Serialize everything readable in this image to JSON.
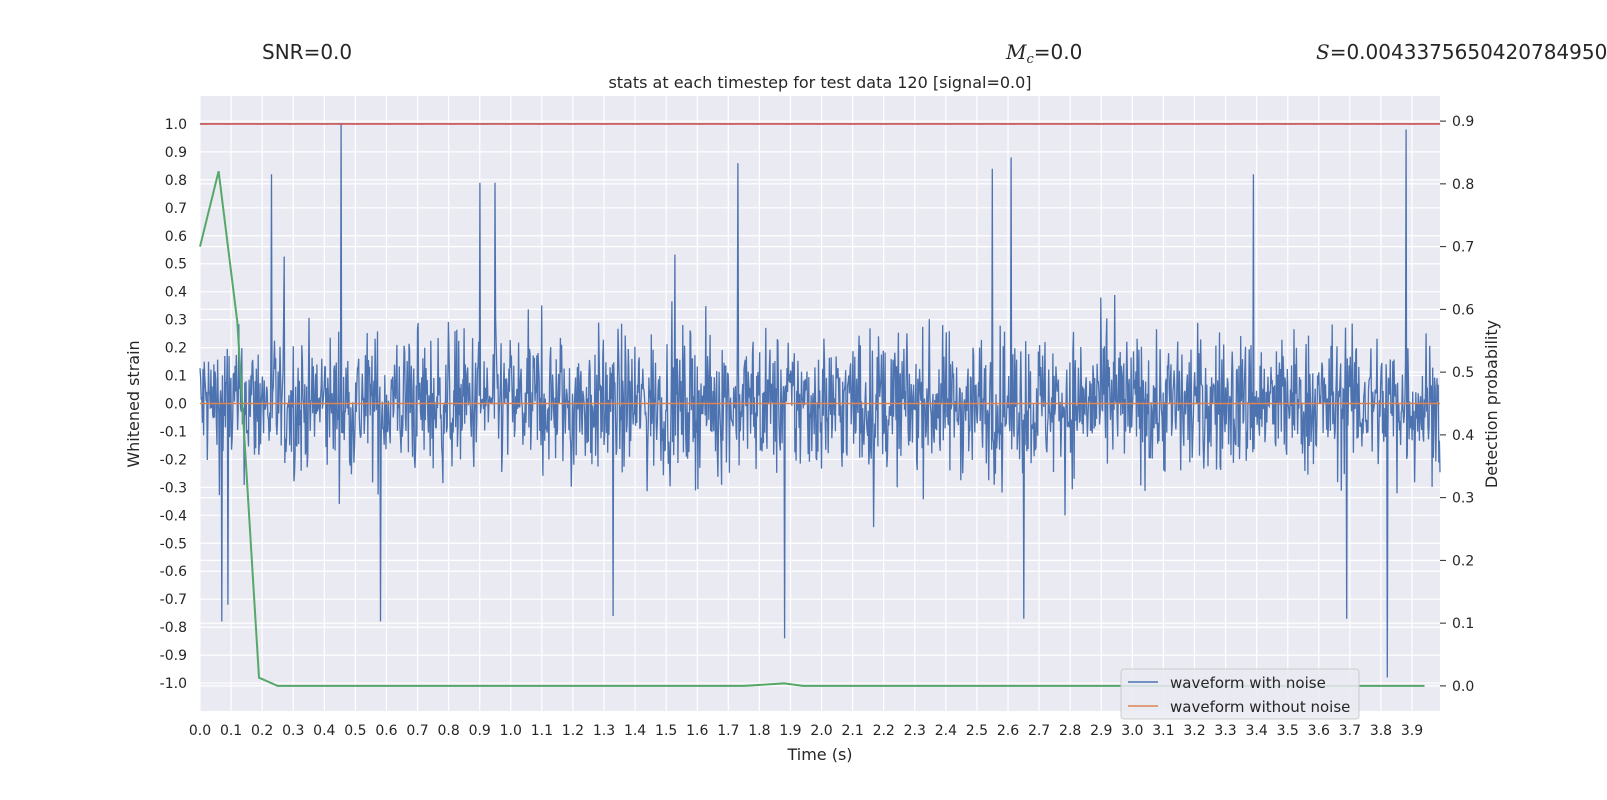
{
  "header": {
    "snr_label": "SNR",
    "snr_value": "=0.0",
    "mc_symbol": "M",
    "mc_subscript": "c",
    "mc_value": "=0.0",
    "s_symbol": "S",
    "s_value": "=0.0043375650420784950"
  },
  "colors": {
    "background": "#eaeaf2",
    "grid": "#ffffff",
    "noise": "#4c72b0",
    "clean": "#dd8452",
    "probability": "#55a868",
    "threshold": "#c44e52",
    "text": "#262626"
  },
  "chart_data": {
    "type": "line",
    "title": "stats at each timestep for test data 120 [signal=0.0]",
    "xlabel": "Time (s)",
    "ylabel": "Whitened strain",
    "y2label": "Detection probability",
    "xlim": [
      0.0,
      3.99
    ],
    "ylim": [
      -1.1,
      1.1
    ],
    "y2lim": [
      -0.04,
      0.94
    ],
    "xticks": [
      "0.0",
      "0.1",
      "0.2",
      "0.3",
      "0.4",
      "0.5",
      "0.6",
      "0.7",
      "0.8",
      "0.9",
      "1.0",
      "1.1",
      "1.2",
      "1.3",
      "1.4",
      "1.5",
      "1.6",
      "1.7",
      "1.8",
      "1.9",
      "2.0",
      "2.1",
      "2.2",
      "2.3",
      "2.4",
      "2.5",
      "2.6",
      "2.7",
      "2.8",
      "2.9",
      "3.0",
      "3.1",
      "3.2",
      "3.3",
      "3.4",
      "3.5",
      "3.6",
      "3.7",
      "3.8",
      "3.9"
    ],
    "yticks": [
      "-1.0",
      "-0.9",
      "-0.8",
      "-0.7",
      "-0.6",
      "-0.5",
      "-0.4",
      "-0.3",
      "-0.2",
      "-0.1",
      "0.0",
      "0.1",
      "0.2",
      "0.3",
      "0.4",
      "0.5",
      "0.6",
      "0.7",
      "0.8",
      "0.9",
      "1.0"
    ],
    "y2ticks": [
      "0.0",
      "0.1",
      "0.2",
      "0.3",
      "0.4",
      "0.5",
      "0.6",
      "0.7",
      "0.8",
      "0.9"
    ],
    "threshold_y": 1.0,
    "series": [
      {
        "name": "waveform with noise",
        "kind": "noise",
        "sample_count": 2048,
        "amplitude_typical": 0.3,
        "spikes": [
          {
            "t": 0.455,
            "v": 1.0
          },
          {
            "t": 0.23,
            "v": 0.82
          },
          {
            "t": 1.73,
            "v": 0.86
          },
          {
            "t": 2.61,
            "v": 0.88
          },
          {
            "t": 3.88,
            "v": 0.98
          },
          {
            "t": 3.39,
            "v": 0.82
          },
          {
            "t": 2.55,
            "v": 0.84
          },
          {
            "t": 0.9,
            "v": 0.79
          },
          {
            "t": 0.95,
            "v": 0.79
          },
          {
            "t": 0.07,
            "v": -0.78
          },
          {
            "t": 0.09,
            "v": -0.72
          },
          {
            "t": 0.58,
            "v": -0.78
          },
          {
            "t": 1.88,
            "v": -0.84
          },
          {
            "t": 3.82,
            "v": -0.98
          },
          {
            "t": 3.69,
            "v": -0.77
          },
          {
            "t": 2.65,
            "v": -0.77
          },
          {
            "t": 1.33,
            "v": -0.76
          }
        ]
      },
      {
        "name": "waveform without noise",
        "kind": "flat",
        "value": 0.0
      },
      {
        "name": "detection probability",
        "kind": "probability",
        "axis": "right",
        "x": [
          0.0,
          0.06,
          0.12,
          0.19,
          0.25,
          0.31,
          1.75,
          1.88,
          1.94,
          3.5,
          3.75,
          3.94
        ],
        "y": [
          0.7,
          0.82,
          0.58,
          0.013,
          0.0,
          0.0,
          0.0,
          0.004,
          0.0,
          0.0,
          0.0,
          0.0
        ]
      }
    ],
    "legend": {
      "position": "lower-right",
      "entries": [
        "waveform with noise",
        "waveform without noise"
      ]
    }
  }
}
